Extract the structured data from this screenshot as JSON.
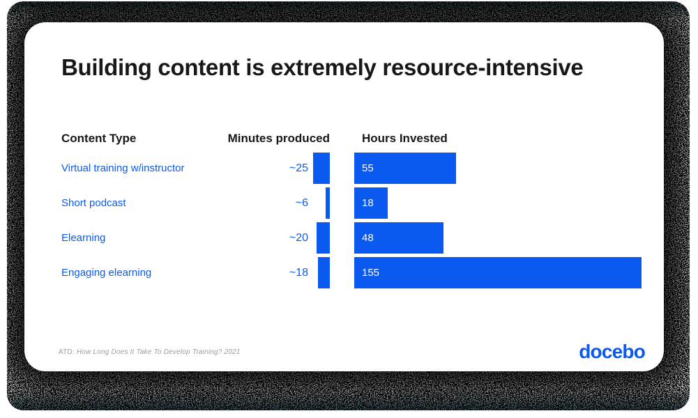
{
  "colors": {
    "accent_blue": "#0b5af0",
    "title_text": "#17181a",
    "footnote_gray": "#9b9b9b",
    "bar_label_white": "#ffffff",
    "edge_tint_teal": "#4e6b70"
  },
  "card": {
    "title": "Building content is extremely resource-intensive",
    "table": {
      "headers": {
        "content_type": "Content Type",
        "minutes_produced": "Minutes produced",
        "hours_invested": "Hours Invested"
      },
      "rows": [
        {
          "label": "Virtual training w/instructor",
          "minutes_label": "~25",
          "minutes": 25,
          "hours_label": "55",
          "hours": 55
        },
        {
          "label": "Short podcast",
          "minutes_label": "~6",
          "minutes": 6,
          "hours_label": "18",
          "hours": 18
        },
        {
          "label": "Elearning",
          "minutes_label": "~20",
          "minutes": 20,
          "hours_label": "48",
          "hours": 48
        },
        {
          "label": "Engaging elearning",
          "minutes_label": "~18",
          "minutes": 18,
          "hours_label": "155",
          "hours": 155
        }
      ]
    },
    "footnote": {
      "prefix": "ATD:",
      "source_italic": "How Long Does It Take To Develop Training? 2021"
    },
    "logo_text": "docebo"
  },
  "chart_data": {
    "type": "bar",
    "orientation": "horizontal",
    "title": "Building content is extremely resource-intensive",
    "categories": [
      "Virtual training w/instructor",
      "Short podcast",
      "Elearning",
      "Engaging elearning"
    ],
    "series": [
      {
        "name": "Minutes produced",
        "unit": "minutes",
        "values": [
          25,
          6,
          20,
          18
        ],
        "labels": [
          "~25",
          "~6",
          "~20",
          "~18"
        ],
        "label_position": "left-of-bar",
        "bar_anchor": "right"
      },
      {
        "name": "Hours Invested",
        "unit": "hours",
        "values": [
          55,
          18,
          48,
          155
        ],
        "labels": [
          "55",
          "18",
          "48",
          "155"
        ],
        "label_position": "inside-left",
        "bar_anchor": "left"
      }
    ],
    "bar_color": "#0b5af0",
    "grid": false,
    "legend_position": "column-headers",
    "source": "ATD: How Long Does It Take To Develop Training? 2021"
  }
}
